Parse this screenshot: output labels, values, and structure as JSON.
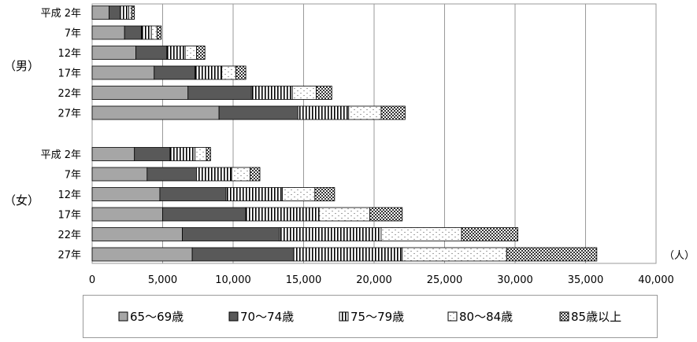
{
  "chart_data": {
    "type": "bar",
    "stacked": true,
    "orientation": "horizontal",
    "groups": [
      {
        "label": "（男）",
        "categories": [
          "平成 2年",
          "7年",
          "12年",
          "17年",
          "22年",
          "27年"
        ],
        "series": [
          {
            "name": "65～69歳",
            "values": [
              1200,
              2300,
              3100,
              4400,
              6800,
              9000
            ]
          },
          {
            "name": "70～74歳",
            "values": [
              800,
              1200,
              2200,
              2900,
              4500,
              5600
            ]
          },
          {
            "name": "75～79歳",
            "values": [
              600,
              700,
              1300,
              1900,
              2900,
              3600
            ]
          },
          {
            "name": "80～84歳",
            "values": [
              200,
              400,
              800,
              1000,
              1700,
              2300
            ]
          },
          {
            "name": "85歳以上",
            "values": [
              200,
              300,
              600,
              700,
              1100,
              1700
            ]
          }
        ]
      },
      {
        "label": "（女）",
        "categories": [
          "平成 2年",
          "7年",
          "12年",
          "17年",
          "22年",
          "27年"
        ],
        "series": [
          {
            "name": "65～69歳",
            "values": [
              3000,
              3900,
              4800,
              5000,
              6400,
              7100
            ]
          },
          {
            "name": "70～74歳",
            "values": [
              2500,
              3500,
              4700,
              5900,
              6900,
              7200
            ]
          },
          {
            "name": "75～79歳",
            "values": [
              1800,
              2500,
              4000,
              5200,
              7200,
              7700
            ]
          },
          {
            "name": "80～84歳",
            "values": [
              800,
              1300,
              2300,
              3600,
              5700,
              7400
            ]
          },
          {
            "name": "85歳以上",
            "values": [
              300,
              700,
              1400,
              2300,
              4000,
              6400
            ]
          }
        ]
      }
    ],
    "x_ticks": [
      "0",
      "5,000",
      "10,000",
      "15,000",
      "20,000",
      "25,000",
      "30,000",
      "35,000",
      "40,000"
    ],
    "xlim": [
      0,
      40000
    ],
    "unit": "（人）",
    "legend": [
      "65～69歳",
      "70～74歳",
      "75～79歳",
      "80～84歳",
      "85歳以上"
    ],
    "legend_position": "bottom",
    "grid": true,
    "colors": {
      "65～69歳": "#a6a6a6",
      "70～74歳": "#595959",
      "75～79歳": "#ffffff",
      "80～84歳": "#ffffff",
      "85歳以上": "#404040"
    }
  }
}
